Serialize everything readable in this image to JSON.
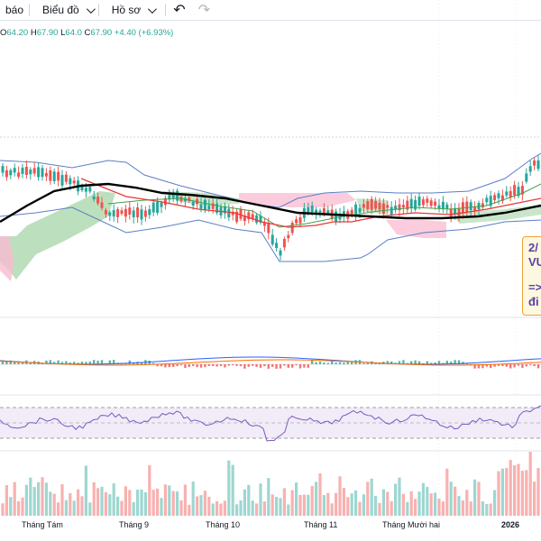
{
  "toolbar": {
    "alerts_label": "báo",
    "chart_label": "Biểu đồ",
    "profile_label": "Hồ sơ",
    "undo_icon": "undo-icon",
    "redo_icon": "redo-icon"
  },
  "ohlc": {
    "open_key": "O",
    "open": "64.20",
    "high_key": "H",
    "high": "67.90",
    "low_key": "L",
    "low": "64.0",
    "close_key": "C",
    "close": "67.90",
    "change": "+4.40 (+6.93%)"
  },
  "annotation": {
    "line1": "2/",
    "line2": "VU",
    "line3": "=>",
    "line4": "đi"
  },
  "time_axis": [
    "Tháng Tám",
    "Tháng 9",
    "Tháng 10",
    "Tháng 11",
    "Tháng Mười hai",
    "2026"
  ],
  "colors": {
    "up": "#26a69a",
    "down": "#ef5350",
    "ma_black": "#000000",
    "ma_red": "#e53935",
    "ma_green": "#43a047",
    "bollinger": "#5b7fc7",
    "cloud_green": "#a5d6a7",
    "cloud_red": "#f8bbd0",
    "rsi_line": "#7e57c2",
    "rsi_band": "#ede7f6"
  }
}
